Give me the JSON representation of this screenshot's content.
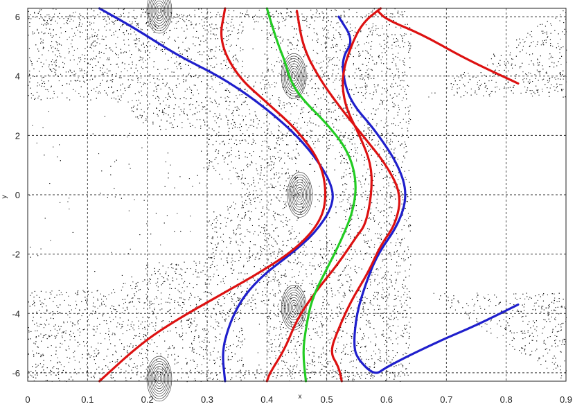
{
  "chart_data": {
    "type": "scatter",
    "title": "",
    "xlabel": "x",
    "ylabel": "y",
    "xlim": [
      0,
      0.9
    ],
    "ylim": [
      -6.283,
      6.283
    ],
    "xticks": [
      0,
      0.1,
      0.2,
      0.3,
      0.4,
      0.5,
      0.6,
      0.7,
      0.8,
      0.9
    ],
    "yticks": [
      -6,
      -4,
      -2,
      0,
      2,
      4,
      6
    ],
    "grid": true,
    "background_points": {
      "name": "",
      "color": "#111111",
      "description_type": "Poincare section scatter",
      "elliptic_islands": [
        {
          "x": 0.22,
          "y": 6.2
        },
        {
          "x": 0.22,
          "y": -6.2
        },
        {
          "x": 0.455,
          "y": 0.0
        },
        {
          "x": 0.445,
          "y": 4.0
        },
        {
          "x": 0.445,
          "y": -3.8
        }
      ]
    },
    "series": [
      {
        "color": "#1f1fcc",
        "points": [
          [
            0.12,
            6.28
          ],
          [
            0.18,
            5.6
          ],
          [
            0.25,
            4.7
          ],
          [
            0.32,
            4.0
          ],
          [
            0.38,
            3.2
          ],
          [
            0.44,
            2.2
          ],
          [
            0.48,
            1.3
          ],
          [
            0.51,
            0.3
          ],
          [
            0.51,
            -0.4
          ],
          [
            0.48,
            -1.3
          ],
          [
            0.44,
            -2.0
          ],
          [
            0.4,
            -2.6
          ],
          [
            0.37,
            -3.2
          ],
          [
            0.35,
            -3.8
          ],
          [
            0.335,
            -4.5
          ],
          [
            0.325,
            -5.3
          ],
          [
            0.33,
            -6.28
          ]
        ]
      },
      {
        "color": "#1f1fcc",
        "points": [
          [
            0.52,
            6.0
          ],
          [
            0.545,
            5.2
          ],
          [
            0.525,
            4.6
          ],
          [
            0.53,
            3.7
          ],
          [
            0.545,
            3.0
          ],
          [
            0.58,
            2.2
          ],
          [
            0.62,
            1.0
          ],
          [
            0.635,
            0.0
          ],
          [
            0.62,
            -1.0
          ],
          [
            0.585,
            -2.0
          ],
          [
            0.565,
            -3.0
          ],
          [
            0.55,
            -4.0
          ],
          [
            0.545,
            -5.0
          ],
          [
            0.55,
            -5.5
          ],
          [
            0.58,
            -6.1
          ],
          [
            0.6,
            -5.8
          ],
          [
            0.68,
            -5.0
          ],
          [
            0.75,
            -4.4
          ],
          [
            0.82,
            -3.7
          ]
        ]
      },
      {
        "color": "#dd1111",
        "points": [
          [
            0.33,
            6.28
          ],
          [
            0.32,
            5.2
          ],
          [
            0.35,
            4.0
          ],
          [
            0.4,
            3.1
          ],
          [
            0.45,
            2.2
          ],
          [
            0.49,
            1.1
          ],
          [
            0.5,
            0.0
          ],
          [
            0.49,
            -0.9
          ],
          [
            0.45,
            -1.8
          ],
          [
            0.39,
            -2.6
          ],
          [
            0.32,
            -3.4
          ],
          [
            0.25,
            -4.2
          ],
          [
            0.19,
            -5.0
          ],
          [
            0.12,
            -6.28
          ]
        ]
      },
      {
        "color": "#dd1111",
        "points": [
          [
            0.45,
            6.2
          ],
          [
            0.46,
            5.0
          ],
          [
            0.485,
            4.0
          ],
          [
            0.52,
            3.0
          ],
          [
            0.56,
            2.0
          ],
          [
            0.6,
            1.0
          ],
          [
            0.625,
            0.0
          ],
          [
            0.615,
            -1.0
          ],
          [
            0.59,
            -1.7
          ],
          [
            0.57,
            -2.6
          ],
          [
            0.54,
            -3.6
          ],
          [
            0.52,
            -4.5
          ],
          [
            0.505,
            -5.3
          ],
          [
            0.52,
            -5.8
          ],
          [
            0.525,
            -6.28
          ]
        ]
      },
      {
        "color": "#dd1111",
        "points": [
          [
            0.59,
            6.28
          ],
          [
            0.56,
            5.8
          ],
          [
            0.54,
            5.0
          ],
          [
            0.525,
            4.0
          ],
          [
            0.53,
            3.0
          ],
          [
            0.555,
            2.0
          ],
          [
            0.575,
            1.0
          ],
          [
            0.575,
            0.0
          ],
          [
            0.565,
            -1.0
          ],
          [
            0.55,
            -1.4
          ],
          [
            0.52,
            -2.3
          ],
          [
            0.48,
            -3.3
          ],
          [
            0.45,
            -4.2
          ],
          [
            0.43,
            -5.2
          ],
          [
            0.405,
            -6.0
          ],
          [
            0.4,
            -6.28
          ]
        ]
      },
      {
        "color": "#dd1111",
        "points": [
          [
            0.585,
            6.2
          ],
          [
            0.6,
            5.9
          ],
          [
            0.66,
            5.4
          ],
          [
            0.73,
            4.6
          ],
          [
            0.82,
            3.75
          ]
        ]
      },
      {
        "color": "#22cc22",
        "points": [
          [
            0.4,
            6.28
          ],
          [
            0.41,
            5.6
          ],
          [
            0.42,
            5.0
          ],
          [
            0.43,
            4.5
          ],
          [
            0.44,
            3.8
          ],
          [
            0.46,
            3.2
          ],
          [
            0.5,
            2.4
          ],
          [
            0.535,
            1.5
          ],
          [
            0.55,
            0.5
          ],
          [
            0.545,
            -0.5
          ],
          [
            0.525,
            -1.5
          ],
          [
            0.5,
            -2.5
          ],
          [
            0.475,
            -3.5
          ],
          [
            0.465,
            -4.5
          ],
          [
            0.46,
            -5.3
          ],
          [
            0.465,
            -6.28
          ]
        ]
      }
    ]
  }
}
